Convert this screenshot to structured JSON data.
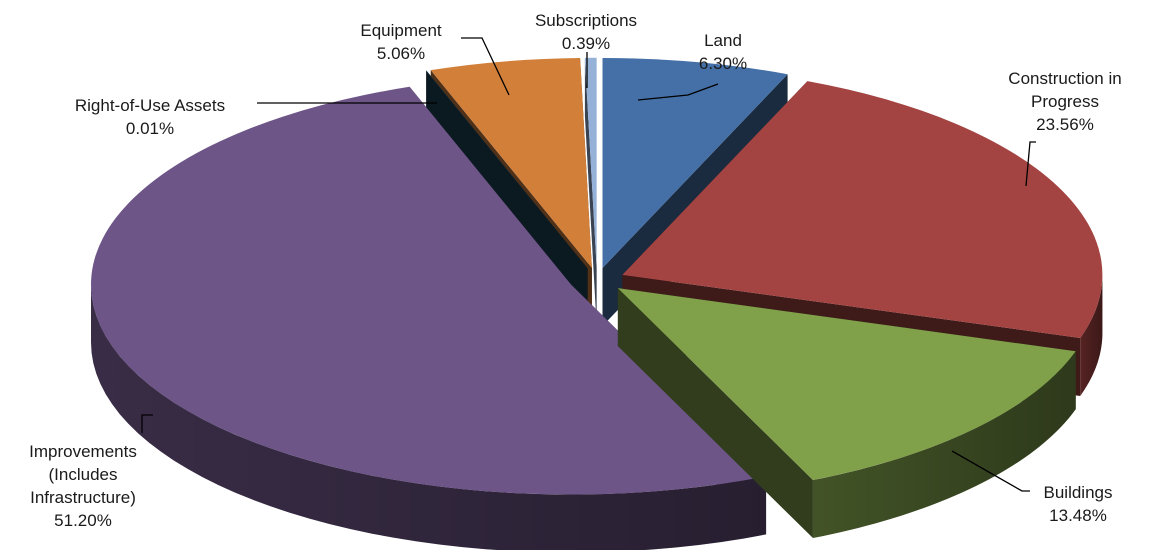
{
  "chart_data": {
    "type": "pie",
    "title": "",
    "three_d": true,
    "exploded": true,
    "legend": "none",
    "slices": [
      {
        "key": "land",
        "label_lines": [
          "Land"
        ],
        "value": 6.3,
        "value_text": "6.30%",
        "color": "#4470A7"
      },
      {
        "key": "construction",
        "label_lines": [
          "Construction in",
          "Progress"
        ],
        "value": 23.56,
        "value_text": "23.56%",
        "color": "#A44442"
      },
      {
        "key": "buildings",
        "label_lines": [
          "Buildings"
        ],
        "value": 13.48,
        "value_text": "13.48%",
        "color": "#80A04A"
      },
      {
        "key": "improvements",
        "label_lines": [
          "Improvements",
          "(Includes",
          "Infrastructure)"
        ],
        "value": 51.2,
        "value_text": "51.20%",
        "color": "#6D5587"
      },
      {
        "key": "right-of-use",
        "label_lines": [
          "Right-of-Use Assets"
        ],
        "value": 0.01,
        "value_text": "0.01%",
        "color": "#1C4356"
      },
      {
        "key": "equipment",
        "label_lines": [
          "Equipment"
        ],
        "value": 5.06,
        "value_text": "5.06%",
        "color": "#D27F3A"
      },
      {
        "key": "subscriptions",
        "label_lines": [
          "Subscriptions"
        ],
        "value": 0.39,
        "value_text": "0.39%",
        "color": "#96B1D8"
      }
    ]
  }
}
